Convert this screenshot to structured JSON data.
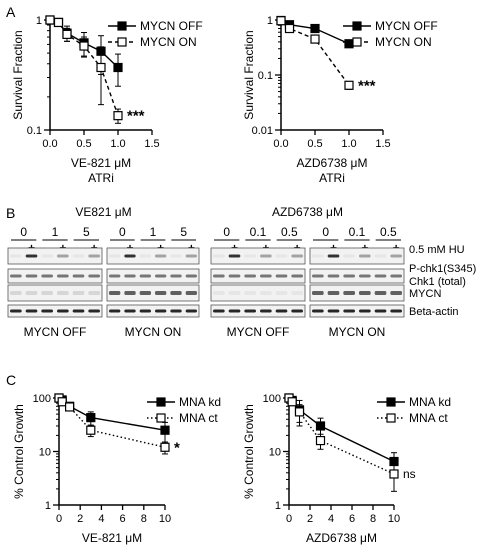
{
  "panels": {
    "A": "A",
    "B": "B",
    "C": "C"
  },
  "chart_data": [
    {
      "id": "A1",
      "type": "line",
      "ylog": true,
      "x_ticks": [
        0.0,
        0.5,
        1.0,
        1.5
      ],
      "x_tick_labels": [
        "0.0",
        "0.5",
        "1.0",
        "1.5"
      ],
      "y_ticks": [
        0.1,
        1
      ],
      "y_tick_labels": [
        "0.1",
        "1"
      ],
      "xlim": [
        0,
        1.5
      ],
      "ylim": [
        0.1,
        1
      ],
      "xlabel": "VE-821 μM",
      "xlabel2": "ATRi",
      "ylabel": "Survival Fraction",
      "legend": [
        "MYCN OFF",
        "MYCN ON"
      ],
      "legend_position": "top-right",
      "annotation": {
        "text": "***",
        "x": 1.0,
        "y": 0.135
      },
      "series": [
        {
          "name": "MYCN OFF",
          "marker": "filled-square",
          "line": "solid",
          "x": [
            0,
            0.125,
            0.25,
            0.5,
            0.75,
            1.0
          ],
          "y": [
            1.0,
            0.95,
            0.76,
            0.62,
            0.52,
            0.37
          ],
          "err": [
            0.02,
            0.05,
            0.12,
            0.15,
            0.2,
            0.12
          ]
        },
        {
          "name": "MYCN ON",
          "marker": "open-square",
          "line": "dashed",
          "x": [
            0,
            0.125,
            0.25,
            0.5,
            0.75,
            1.0
          ],
          "y": [
            1.0,
            0.95,
            0.74,
            0.58,
            0.37,
            0.135
          ],
          "err": [
            0.02,
            0.05,
            0.1,
            0.12,
            0.2,
            0.02
          ]
        }
      ]
    },
    {
      "id": "A2",
      "type": "line",
      "ylog": true,
      "x_ticks": [
        0.0,
        0.5,
        1.0,
        1.5
      ],
      "x_tick_labels": [
        "0.0",
        "0.5",
        "1.0",
        "1.5"
      ],
      "y_ticks": [
        0.01,
        0.1,
        1
      ],
      "y_tick_labels": [
        "0.01",
        "0.1",
        "1"
      ],
      "xlim": [
        0,
        1.5
      ],
      "ylim": [
        0.01,
        1
      ],
      "xlabel": "AZD6738 μM",
      "xlabel2": "ATRi",
      "ylabel": "Survival Fraction",
      "legend": [
        "MYCN OFF",
        "MYCN ON"
      ],
      "legend_position": "top-right",
      "annotation": {
        "text": "***",
        "x": 1.0,
        "y": 0.065
      },
      "series": [
        {
          "name": "MYCN OFF",
          "marker": "filled-square",
          "line": "solid",
          "x": [
            0,
            0.125,
            0.5,
            1.0
          ],
          "y": [
            0.98,
            0.82,
            0.7,
            0.37
          ],
          "err": [
            0.02,
            0.04,
            0.04,
            0.04
          ]
        },
        {
          "name": "MYCN ON",
          "marker": "open-square",
          "line": "dashed",
          "x": [
            0,
            0.125,
            0.5,
            1.0
          ],
          "y": [
            0.97,
            0.7,
            0.45,
            0.065
          ],
          "err": [
            0.02,
            0.04,
            0.04,
            0.01
          ]
        }
      ]
    },
    {
      "id": "C1",
      "type": "line",
      "ylog": true,
      "x_ticks": [
        0,
        2,
        4,
        6,
        8,
        10
      ],
      "x_tick_labels": [
        "0",
        "2",
        "4",
        "6",
        "8",
        "10"
      ],
      "y_ticks": [
        1,
        10,
        100
      ],
      "y_tick_labels": [
        "1",
        "10",
        "100"
      ],
      "xlim": [
        0,
        10
      ],
      "ylim": [
        1,
        100
      ],
      "xlabel": "VE-821 μM",
      "ylabel": "% Control Growth",
      "legend": [
        "MNA kd",
        "MNA ct"
      ],
      "legend_position": "top-right",
      "annotation": {
        "text": "*",
        "x": 10,
        "y": 12
      },
      "series": [
        {
          "name": "MNA kd",
          "marker": "filled-square",
          "line": "solid",
          "x": [
            0,
            0.3,
            1,
            3,
            10
          ],
          "y": [
            100,
            92,
            70,
            43,
            25
          ],
          "err": [
            5,
            8,
            10,
            12,
            10
          ]
        },
        {
          "name": "MNA ct",
          "marker": "open-square",
          "line": "dotted",
          "x": [
            0,
            0.3,
            1,
            3,
            10
          ],
          "y": [
            100,
            85,
            68,
            25,
            12
          ],
          "err": [
            5,
            8,
            8,
            6,
            3
          ]
        }
      ]
    },
    {
      "id": "C2",
      "type": "line",
      "ylog": true,
      "x_ticks": [
        0,
        2,
        4,
        6,
        8,
        10
      ],
      "x_tick_labels": [
        "0",
        "2",
        "4",
        "6",
        "8",
        "10"
      ],
      "y_ticks": [
        1,
        10,
        100
      ],
      "y_tick_labels": [
        "1",
        "10",
        "100"
      ],
      "xlim": [
        0,
        10
      ],
      "ylim": [
        1,
        100
      ],
      "xlabel": "AZD6738 μM",
      "ylabel": "% Control Growth",
      "legend": [
        "MNA kd",
        "MNA ct"
      ],
      "legend_position": "top-right",
      "annotation": {
        "text": "ns",
        "x": 10,
        "y": 4
      },
      "series": [
        {
          "name": "MNA kd",
          "marker": "filled-square",
          "line": "solid",
          "x": [
            0,
            0.3,
            1,
            3,
            10
          ],
          "y": [
            100,
            90,
            60,
            30,
            6.5
          ],
          "err": [
            5,
            10,
            30,
            12,
            3
          ]
        },
        {
          "name": "MNA ct",
          "marker": "open-square",
          "line": "dotted",
          "x": [
            0,
            0.3,
            1,
            3,
            10
          ],
          "y": [
            100,
            85,
            55,
            16,
            3.8
          ],
          "err": [
            5,
            8,
            20,
            5,
            2
          ]
        }
      ]
    }
  ],
  "blot": {
    "groups": [
      {
        "drug": "VE821 μM",
        "doses": [
          "0",
          "1",
          "5"
        ],
        "cell_labels": [
          "MYCN OFF",
          "MYCN ON"
        ]
      },
      {
        "drug": "AZD6738 μM",
        "doses": [
          "0",
          "0.1",
          "0.5"
        ],
        "cell_labels": [
          "MYCN OFF",
          "MYCN ON"
        ]
      }
    ],
    "hu_signs": [
      "-",
      "+",
      "-",
      "+",
      "-",
      "+"
    ],
    "hu_label": "0.5 mM HU",
    "row_labels": [
      "P-chk1(S345)",
      "Chk1 (total)",
      "MYCN",
      "Beta-actin"
    ]
  }
}
